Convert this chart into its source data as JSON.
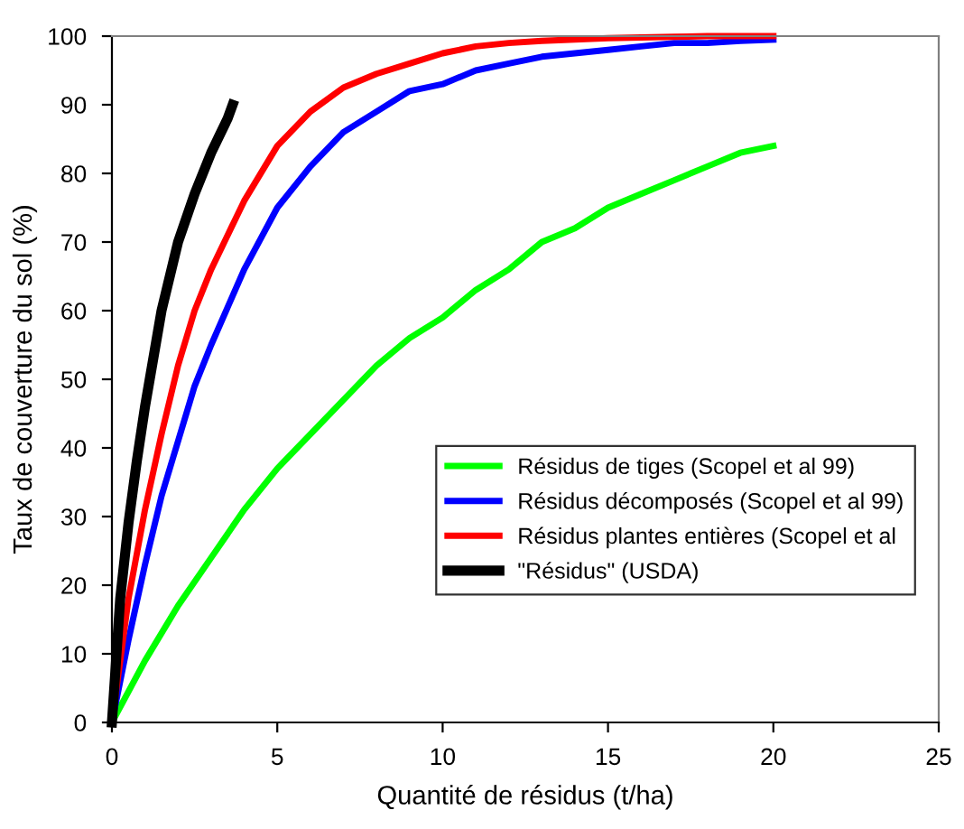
{
  "chart_data": {
    "type": "line",
    "xlabel": "Quantité de résidus (t/ha)",
    "ylabel": "Taux de couverture du sol (%)",
    "xlim": [
      0,
      25
    ],
    "xticks": [
      0,
      5,
      10,
      15,
      20,
      25
    ],
    "ylim": [
      0,
      100
    ],
    "yticks": [
      0,
      10,
      20,
      30,
      40,
      50,
      60,
      70,
      80,
      90,
      100
    ],
    "grid": false,
    "legend": "right",
    "marker": "none",
    "line_style": "solid",
    "series": [
      {
        "name": "Résidus de tiges (Scopel et al 99)",
        "color": "#00ff00",
        "x": [
          0,
          1,
          2,
          3,
          4,
          5,
          6,
          7,
          8,
          9,
          10,
          11,
          12,
          13,
          14,
          15,
          16,
          17,
          18,
          19,
          20
        ],
        "values": [
          0,
          9,
          17,
          24,
          31,
          37,
          42,
          47,
          52,
          56,
          59,
          63,
          66,
          70,
          72,
          75,
          77,
          79,
          81,
          83,
          84
        ]
      },
      {
        "name": "Résidus décomposés (Scopel et al 99)",
        "color": "#0000ff",
        "x": [
          0,
          0.5,
          1,
          1.5,
          2,
          2.5,
          3,
          4,
          5,
          6,
          7,
          8,
          9,
          10,
          11,
          12,
          13,
          14,
          15,
          16,
          17,
          18,
          19,
          20
        ],
        "values": [
          0,
          12,
          23,
          33,
          41,
          49,
          55,
          66,
          75,
          81,
          86,
          89,
          92,
          93,
          95,
          96,
          97,
          97.5,
          98,
          98.5,
          99,
          99,
          99.3,
          99.5
        ]
      },
      {
        "name": "Résidus plantes entières (Scopel et al",
        "color": "#ff0000",
        "x": [
          0,
          0.5,
          1,
          1.5,
          2,
          2.5,
          3,
          4,
          5,
          6,
          7,
          8,
          9,
          10,
          11,
          12,
          13,
          14,
          15,
          16,
          17,
          18,
          19,
          20
        ],
        "values": [
          0,
          18,
          31,
          42,
          52,
          60,
          66,
          76,
          84,
          89,
          92.5,
          94.5,
          96,
          97.5,
          98.5,
          99,
          99.3,
          99.5,
          99.7,
          99.8,
          99.9,
          100,
          100,
          100
        ]
      },
      {
        "name": "\"Résidus\" (USDA)",
        "color": "#000000",
        "x": [
          0,
          0.25,
          0.5,
          0.75,
          1,
          1.5,
          2,
          2.5,
          3,
          3.5,
          3.65
        ],
        "values": [
          0,
          18,
          29,
          38,
          46,
          60,
          70,
          77,
          83,
          88,
          90
        ]
      }
    ]
  }
}
